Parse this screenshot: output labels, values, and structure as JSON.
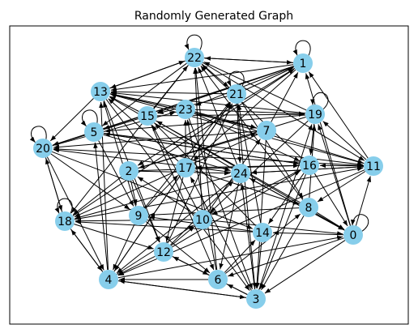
{
  "title": "Randomly Generated Graph",
  "style": {
    "node_color": "#87ceeb",
    "edge_color": "#000000",
    "frame_color": "#000000",
    "background": "#ffffff"
  },
  "graph": {
    "directed": true,
    "nodes": [
      "0",
      "1",
      "2",
      "3",
      "4",
      "5",
      "6",
      "7",
      "8",
      "9",
      "10",
      "11",
      "12",
      "13",
      "14",
      "15",
      "16",
      "17",
      "18",
      "19",
      "20",
      "21",
      "22",
      "23",
      "24"
    ],
    "self_loops": [
      "0",
      "1",
      "5",
      "18",
      "19",
      "20",
      "21",
      "22"
    ],
    "edges": [
      [
        "0",
        "1"
      ],
      [
        "0",
        "3"
      ],
      [
        "0",
        "6"
      ],
      [
        "0",
        "11"
      ],
      [
        "0",
        "14"
      ],
      [
        "0",
        "19"
      ],
      [
        "0",
        "24"
      ],
      [
        "1",
        "2"
      ],
      [
        "1",
        "5"
      ],
      [
        "1",
        "13"
      ],
      [
        "1",
        "15"
      ],
      [
        "1",
        "17"
      ],
      [
        "1",
        "20"
      ],
      [
        "1",
        "22"
      ],
      [
        "1",
        "23"
      ],
      [
        "2",
        "7"
      ],
      [
        "2",
        "9"
      ],
      [
        "2",
        "12"
      ],
      [
        "2",
        "16"
      ],
      [
        "2",
        "18"
      ],
      [
        "2",
        "24"
      ],
      [
        "3",
        "4"
      ],
      [
        "3",
        "6"
      ],
      [
        "3",
        "12"
      ],
      [
        "3",
        "17"
      ],
      [
        "3",
        "19"
      ],
      [
        "3",
        "24"
      ],
      [
        "4",
        "0"
      ],
      [
        "4",
        "3"
      ],
      [
        "4",
        "5"
      ],
      [
        "4",
        "10"
      ],
      [
        "4",
        "13"
      ],
      [
        "4",
        "18"
      ],
      [
        "4",
        "21"
      ],
      [
        "5",
        "9"
      ],
      [
        "5",
        "11"
      ],
      [
        "5",
        "16"
      ],
      [
        "5",
        "20"
      ],
      [
        "5",
        "24"
      ],
      [
        "6",
        "4"
      ],
      [
        "6",
        "8"
      ],
      [
        "6",
        "12"
      ],
      [
        "6",
        "14"
      ],
      [
        "6",
        "22"
      ],
      [
        "6",
        "23"
      ],
      [
        "7",
        "1"
      ],
      [
        "7",
        "3"
      ],
      [
        "7",
        "13"
      ],
      [
        "7",
        "18"
      ],
      [
        "7",
        "20"
      ],
      [
        "8",
        "0"
      ],
      [
        "8",
        "3"
      ],
      [
        "8",
        "9"
      ],
      [
        "8",
        "15"
      ],
      [
        "8",
        "19"
      ],
      [
        "8",
        "22"
      ],
      [
        "9",
        "4"
      ],
      [
        "9",
        "6"
      ],
      [
        "9",
        "13"
      ],
      [
        "9",
        "17"
      ],
      [
        "9",
        "21"
      ],
      [
        "10",
        "0"
      ],
      [
        "10",
        "2"
      ],
      [
        "10",
        "7"
      ],
      [
        "10",
        "15"
      ],
      [
        "10",
        "18"
      ],
      [
        "10",
        "22"
      ],
      [
        "11",
        "1"
      ],
      [
        "11",
        "4"
      ],
      [
        "11",
        "8"
      ],
      [
        "11",
        "13"
      ],
      [
        "11",
        "16"
      ],
      [
        "11",
        "19"
      ],
      [
        "11",
        "20"
      ],
      [
        "11",
        "24"
      ],
      [
        "12",
        "4"
      ],
      [
        "12",
        "6"
      ],
      [
        "12",
        "10"
      ],
      [
        "12",
        "16"
      ],
      [
        "12",
        "21"
      ],
      [
        "12",
        "24"
      ],
      [
        "13",
        "3"
      ],
      [
        "13",
        "7"
      ],
      [
        "13",
        "12"
      ],
      [
        "13",
        "20"
      ],
      [
        "13",
        "22"
      ],
      [
        "14",
        "3"
      ],
      [
        "14",
        "9"
      ],
      [
        "14",
        "15"
      ],
      [
        "14",
        "18"
      ],
      [
        "14",
        "21"
      ],
      [
        "15",
        "0"
      ],
      [
        "15",
        "6"
      ],
      [
        "15",
        "13"
      ],
      [
        "15",
        "19"
      ],
      [
        "15",
        "20"
      ],
      [
        "15",
        "22"
      ],
      [
        "16",
        "0"
      ],
      [
        "16",
        "3"
      ],
      [
        "16",
        "5"
      ],
      [
        "16",
        "10"
      ],
      [
        "16",
        "14"
      ],
      [
        "16",
        "17"
      ],
      [
        "16",
        "22"
      ],
      [
        "17",
        "4"
      ],
      [
        "17",
        "8"
      ],
      [
        "17",
        "12"
      ],
      [
        "17",
        "13"
      ],
      [
        "17",
        "21"
      ],
      [
        "17",
        "23"
      ],
      [
        "18",
        "1"
      ],
      [
        "18",
        "4"
      ],
      [
        "18",
        "11"
      ],
      [
        "18",
        "12"
      ],
      [
        "18",
        "20"
      ],
      [
        "19",
        "2"
      ],
      [
        "19",
        "5"
      ],
      [
        "19",
        "10"
      ],
      [
        "19",
        "13"
      ],
      [
        "19",
        "16"
      ],
      [
        "19",
        "22"
      ],
      [
        "20",
        "4"
      ],
      [
        "20",
        "9"
      ],
      [
        "20",
        "14"
      ],
      [
        "20",
        "18"
      ],
      [
        "20",
        "23"
      ],
      [
        "21",
        "1"
      ],
      [
        "21",
        "3"
      ],
      [
        "21",
        "8"
      ],
      [
        "21",
        "13"
      ],
      [
        "21",
        "15"
      ],
      [
        "21",
        "24"
      ],
      [
        "22",
        "1"
      ],
      [
        "22",
        "5"
      ],
      [
        "22",
        "11"
      ],
      [
        "22",
        "13"
      ],
      [
        "22",
        "18"
      ],
      [
        "22",
        "21"
      ],
      [
        "23",
        "3"
      ],
      [
        "23",
        "7"
      ],
      [
        "23",
        "11"
      ],
      [
        "23",
        "13"
      ],
      [
        "23",
        "16"
      ],
      [
        "23",
        "19"
      ],
      [
        "24",
        "0"
      ],
      [
        "24",
        "4"
      ],
      [
        "24",
        "6"
      ],
      [
        "24",
        "11"
      ],
      [
        "24",
        "13"
      ],
      [
        "24",
        "18"
      ],
      [
        "24",
        "20"
      ],
      [
        "24",
        "22"
      ]
    ]
  }
}
